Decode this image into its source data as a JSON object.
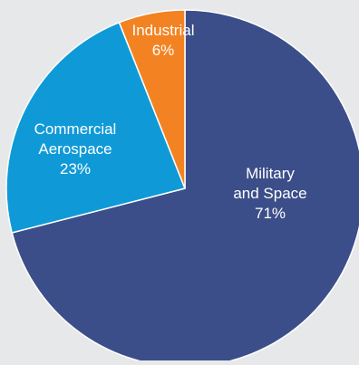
{
  "chart_data": {
    "type": "pie",
    "title": "",
    "start": "top",
    "direction": "clockwise",
    "slices": [
      {
        "label_lines": [
          "Military",
          "and Space",
          "71%"
        ],
        "value": 71,
        "color": "#3c4e89"
      },
      {
        "label_lines": [
          "Commercial",
          "Aerospace",
          "23%"
        ],
        "value": 23,
        "color": "#0f9ad7"
      },
      {
        "label_lines": [
          "Industrial",
          "6%"
        ],
        "value": 6,
        "color": "#f38322"
      }
    ],
    "background": "#e7e8ea",
    "slice_border": "#ffffff",
    "label_color": "#ffffff"
  }
}
